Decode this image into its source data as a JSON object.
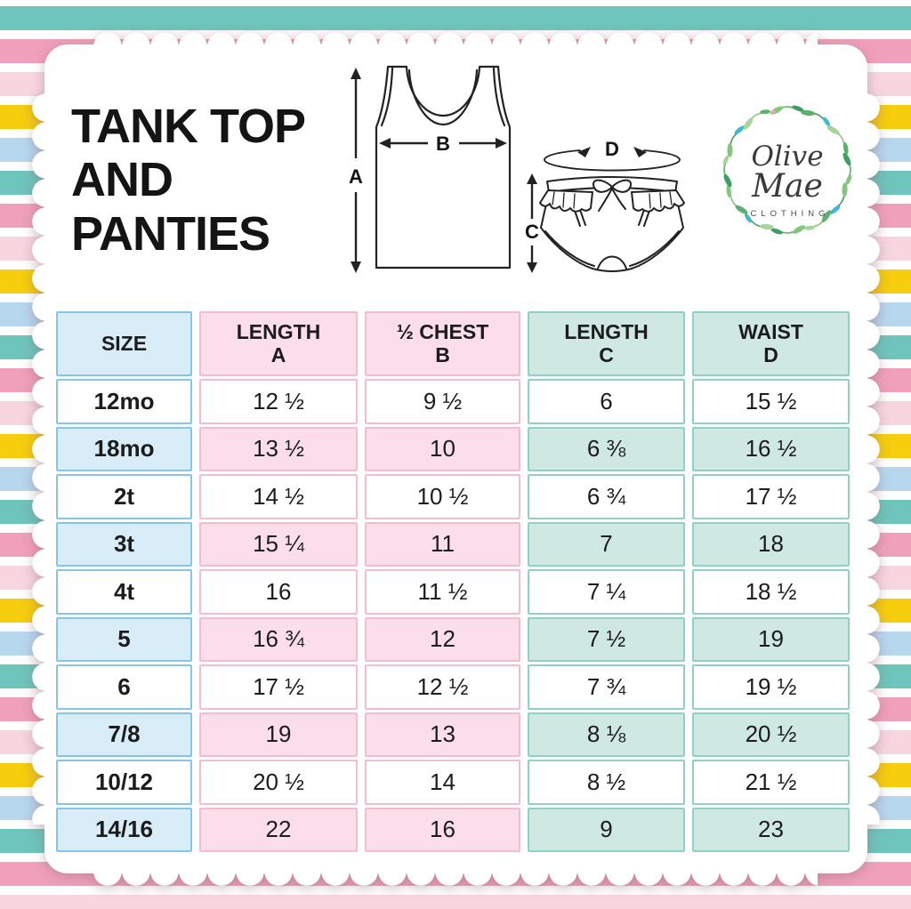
{
  "title": "TANK TOP\nAND\nPANTIES",
  "brand": {
    "line1": "Olive",
    "line2": "Mae",
    "subtitle": "CLOTHING"
  },
  "diagram_labels": {
    "length_a": "A",
    "half_chest_b": "B",
    "length_c": "C",
    "waist_d": "D"
  },
  "table": {
    "headers": [
      "SIZE",
      "LENGTH\nA",
      "½ CHEST\nB",
      "LENGTH\nC",
      "WAIST\nD"
    ],
    "rows": [
      [
        "12mo",
        "12 ½",
        "9 ½",
        "6",
        "15 ½"
      ],
      [
        "18mo",
        "13 ½",
        "10",
        "6 ⅜",
        "16 ½"
      ],
      [
        "2t",
        "14 ½",
        "10 ½",
        "6 ¾",
        "17 ½"
      ],
      [
        "3t",
        "15 ¼",
        "11",
        "7",
        "18"
      ],
      [
        "4t",
        "16",
        "11 ½",
        "7 ¼",
        "18 ½"
      ],
      [
        "5",
        "16 ¾",
        "12",
        "7 ½",
        "19"
      ],
      [
        "6",
        "17 ½",
        "12 ½",
        "7 ¾",
        "19 ½"
      ],
      [
        "7/8",
        "19",
        "13",
        "8 ⅛",
        "20 ½"
      ],
      [
        "10/12",
        "20 ½",
        "14",
        "8 ½",
        "21 ½"
      ],
      [
        "14/16",
        "22",
        "16",
        "9",
        "23"
      ]
    ]
  },
  "colors": {
    "stripe_teal": "#6ec5bc",
    "stripe_pink": "#f0a0ba",
    "stripe_light_pink": "#f8d6e0",
    "stripe_yellow": "#f6ce0d",
    "stripe_light_blue": "#b7d7ee",
    "cell_blue_fill": "#d9edf9",
    "cell_blue_border": "#84c5e9",
    "cell_pink_fill": "#fbdeea",
    "cell_pink_border": "#f4bcd1",
    "cell_mint_fill": "#cfe8e2",
    "cell_mint_border": "#8fd1c7",
    "text": "#141414"
  }
}
